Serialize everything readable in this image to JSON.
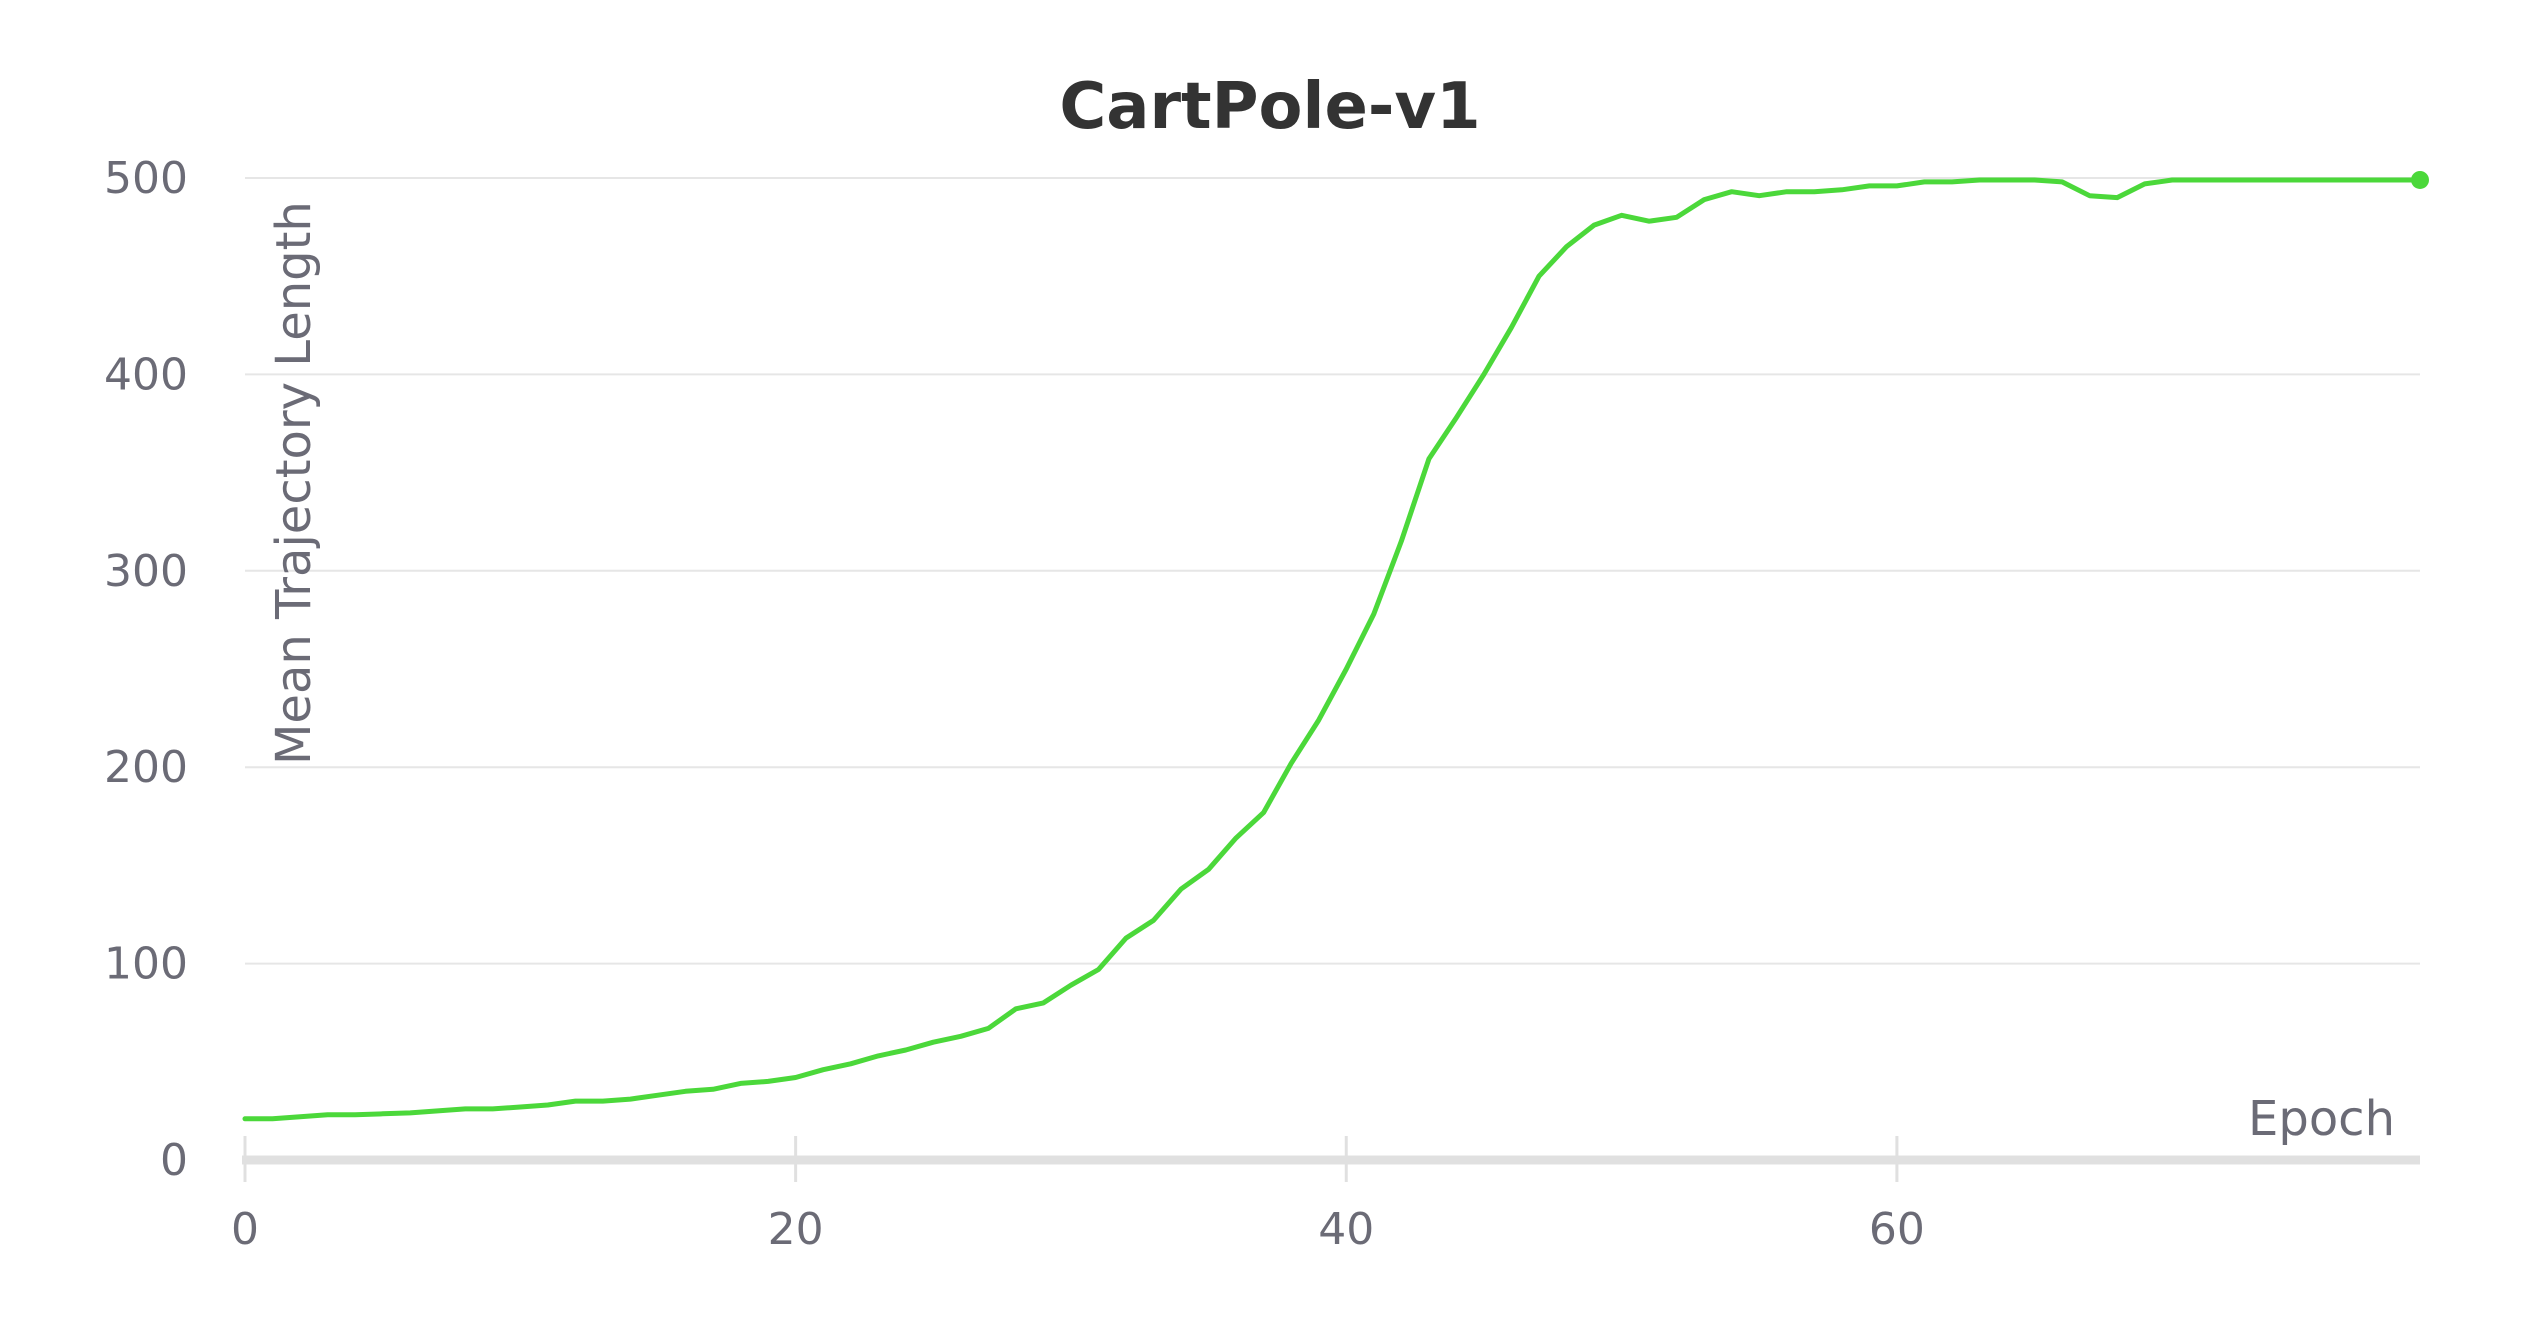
{
  "chart_data": {
    "type": "line",
    "title": "CartPole-v1",
    "xlabel": "Epoch",
    "ylabel": "Mean Trajectory Length",
    "xlim": [
      0,
      79
    ],
    "ylim": [
      0,
      500
    ],
    "xticks": [
      0,
      20,
      40,
      60
    ],
    "yticks": [
      0,
      100,
      200,
      300,
      400,
      500
    ],
    "grid": true,
    "legend": "none",
    "end_marker": true,
    "color": "#4bd83a",
    "series": [
      {
        "x": [
          0,
          1,
          2,
          3,
          4,
          5,
          6,
          7,
          8,
          9,
          10,
          11,
          12,
          13,
          14,
          15,
          16,
          17,
          18,
          19,
          20,
          21,
          22,
          23,
          24,
          25,
          26,
          27,
          28,
          29,
          30,
          31,
          32,
          33,
          34,
          35,
          36,
          37,
          38,
          39,
          40,
          41,
          42,
          43,
          44,
          45,
          46,
          47,
          48,
          49,
          50,
          51,
          52,
          53,
          54,
          55,
          56,
          57,
          58,
          59,
          60,
          61,
          62,
          63,
          64,
          65,
          66,
          67,
          68,
          69,
          70,
          71,
          72,
          73,
          74,
          75,
          76,
          77,
          78,
          79
        ],
        "y": [
          21,
          21,
          22,
          23,
          23,
          23.5,
          24,
          25,
          26,
          26,
          27,
          28,
          30,
          30,
          31,
          33,
          35,
          36,
          39,
          40,
          42,
          46,
          49,
          53,
          56,
          60,
          63,
          67,
          77,
          80,
          89,
          97,
          113,
          122,
          138,
          148,
          164,
          177,
          202,
          224,
          250,
          278,
          315,
          357,
          378,
          400,
          424,
          450,
          465,
          476,
          481,
          478,
          480,
          489,
          493,
          491,
          493,
          493,
          494,
          496,
          496,
          498,
          498,
          499,
          499,
          499,
          498,
          491,
          490,
          497,
          499,
          499,
          499,
          499,
          499,
          499,
          499,
          499,
          499,
          499
        ]
      }
    ]
  }
}
